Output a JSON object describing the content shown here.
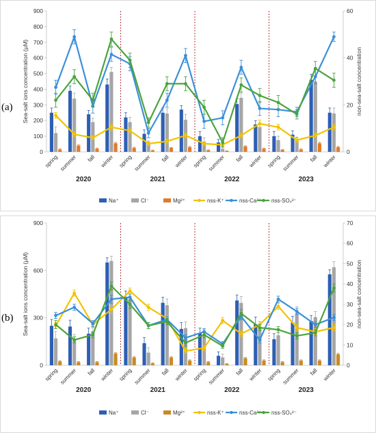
{
  "chart_data": [
    {
      "panel_label": "(a)",
      "type": "bar+line",
      "categories": [
        "spring",
        "summer",
        "fall",
        "winter",
        "spring",
        "summer",
        "fall",
        "winter",
        "spring",
        "summer",
        "fall",
        "winter",
        "spring",
        "summer",
        "fall",
        "winter"
      ],
      "years": [
        "2020",
        "2021",
        "2022",
        "2023"
      ],
      "ylabel": "Sea-salt ions concentration (µM)",
      "y2label": "non-sea-salt concentration",
      "ylim": [
        0,
        900
      ],
      "yticks": [
        0,
        100,
        200,
        300,
        400,
        500,
        600,
        700,
        800,
        900
      ],
      "y2lim": [
        0,
        60
      ],
      "y2ticks": [
        0,
        20,
        40,
        60
      ],
      "bar_series": [
        {
          "name": "Na⁺",
          "color": "#2e5fb3",
          "values": [
            250,
            390,
            240,
            430,
            220,
            115,
            250,
            270,
            100,
            60,
            305,
            175,
            100,
            110,
            460,
            250
          ],
          "err": [
            30,
            30,
            25,
            35,
            30,
            25,
            30,
            25,
            30,
            20,
            35,
            25,
            30,
            25,
            35,
            30
          ]
        },
        {
          "name": "Cl⁻",
          "color": "#a6a6a6",
          "values": [
            120,
            340,
            190,
            510,
            190,
            50,
            245,
            205,
            65,
            20,
            345,
            160,
            75,
            75,
            450,
            245
          ],
          "err": [
            40,
            35,
            25,
            30,
            30,
            20,
            30,
            35,
            25,
            15,
            30,
            25,
            25,
            20,
            30,
            35
          ]
        },
        {
          "name": "Mg²⁺",
          "color": "#e07b2c",
          "values": [
            15,
            40,
            20,
            55,
            25,
            8,
            25,
            30,
            10,
            5,
            35,
            20,
            12,
            15,
            55,
            30
          ],
          "err": [
            4,
            5,
            4,
            6,
            5,
            3,
            4,
            5,
            3,
            2,
            5,
            4,
            3,
            4,
            6,
            5
          ]
        }
      ],
      "line_series": [
        {
          "name": "nss-K⁺",
          "color": "#f2c200",
          "values": [
            15.5,
            7.5,
            6,
            10.5,
            9,
            3.5,
            4.5,
            7,
            3.5,
            3,
            7,
            12,
            10.5,
            5,
            7,
            10.5
          ],
          "err": [
            1.2,
            1,
            0.8,
            1.2,
            1.2,
            0.8,
            1,
            1,
            0.8,
            0.8,
            1,
            1.5,
            1.2,
            1,
            1,
            1.2
          ]
        },
        {
          "name": "nss-Ca²⁺",
          "color": "#3a8fd9",
          "values": [
            27.5,
            49,
            19.5,
            41.5,
            37.5,
            8,
            22,
            41,
            13,
            14.5,
            36,
            18.5,
            18,
            17,
            32,
            49
          ],
          "err": [
            3,
            3,
            3,
            3,
            3,
            2,
            3,
            3,
            3,
            3,
            3,
            3,
            3,
            2,
            3,
            2
          ]
        },
        {
          "name": "nss-SO₄²⁻",
          "color": "#4aa33c",
          "values": [
            22,
            32,
            22,
            48,
            39,
            12.5,
            29,
            29,
            19,
            4,
            28.5,
            24,
            21,
            16,
            35.5,
            30.5
          ],
          "err": [
            3,
            3,
            3,
            3,
            3,
            2,
            3,
            3,
            3,
            2,
            3,
            3,
            3,
            2,
            3,
            3
          ]
        }
      ]
    },
    {
      "panel_label": "(b)",
      "type": "bar+line",
      "categories": [
        "spring",
        "summer",
        "fall",
        "winter",
        "spring",
        "summer",
        "fall",
        "winter",
        "spring",
        "summer",
        "fall",
        "winter",
        "spring",
        "summer",
        "fall",
        "winter"
      ],
      "years": [
        "2020",
        "2021",
        "2022",
        "2023"
      ],
      "ylabel": "Sea-salt ions concentration (µM)",
      "y2label": "non-sea-salt concentration",
      "ylim": [
        0,
        900
      ],
      "yticks": [
        0,
        300,
        600,
        900
      ],
      "y2lim": [
        0,
        70
      ],
      "y2ticks": [
        0,
        10,
        20,
        30,
        40,
        50,
        60,
        70
      ],
      "bar_series": [
        {
          "name": "Na⁺",
          "color": "#2e5fb3",
          "values": [
            250,
            245,
            200,
            650,
            430,
            140,
            395,
            230,
            205,
            60,
            410,
            260,
            165,
            270,
            280,
            575
          ],
          "err": [
            40,
            40,
            35,
            30,
            40,
            35,
            35,
            40,
            30,
            25,
            35,
            45,
            35,
            40,
            35,
            30
          ]
        },
        {
          "name": "Cl⁻",
          "color": "#a6a6a6",
          "values": [
            170,
            160,
            210,
            660,
            420,
            80,
            380,
            235,
            190,
            50,
            395,
            240,
            190,
            330,
            305,
            620
          ],
          "err": [
            45,
            35,
            30,
            30,
            45,
            30,
            40,
            40,
            35,
            20,
            40,
            35,
            35,
            40,
            35,
            35
          ]
        },
        {
          "name": "Mg²⁺",
          "color": "#c98a28",
          "values": [
            25,
            20,
            20,
            75,
            50,
            12,
            50,
            30,
            20,
            8,
            45,
            30,
            20,
            30,
            30,
            70
          ],
          "err": [
            5,
            4,
            4,
            6,
            6,
            3,
            5,
            5,
            4,
            3,
            5,
            5,
            4,
            5,
            5,
            6
          ]
        }
      ],
      "line_series": [
        {
          "name": "nss-K⁺",
          "color": "#f2c200",
          "values": [
            19.5,
            35.5,
            20,
            27.5,
            36.5,
            28.5,
            23,
            7,
            8.5,
            22,
            15.5,
            20,
            29,
            18.5,
            16.5,
            18.5
          ],
          "err": [
            1.5,
            1.5,
            1.5,
            2,
            1.5,
            1.5,
            1.5,
            1.2,
            1.2,
            1.5,
            1.5,
            1.5,
            1.5,
            1.5,
            1.5,
            1.5
          ]
        },
        {
          "name": "nss-Ca²⁺",
          "color": "#3a8fd9",
          "values": [
            24.5,
            28.5,
            20.5,
            32.5,
            33.5,
            19.5,
            22.5,
            13.5,
            16.5,
            10.5,
            24,
            12.5,
            32.5,
            26.5,
            20,
            23.5
          ],
          "err": [
            1.5,
            1.5,
            1.5,
            2,
            1.5,
            1.5,
            1.5,
            1.5,
            1.5,
            1.2,
            1.5,
            1.5,
            1.5,
            1.5,
            1.5,
            1.5
          ]
        },
        {
          "name": "nss-SO₄²⁻",
          "color": "#4aa33c",
          "values": [
            20,
            12.5,
            15,
            39,
            30,
            19.5,
            21.5,
            11,
            15,
            9.5,
            25.5,
            18.5,
            17.5,
            14.5,
            16,
            38
          ],
          "err": [
            2,
            1.5,
            1.5,
            2,
            2,
            1.5,
            1.5,
            1.5,
            1.5,
            1.2,
            2,
            1.5,
            1.5,
            1.5,
            1.5,
            2
          ]
        }
      ]
    }
  ]
}
